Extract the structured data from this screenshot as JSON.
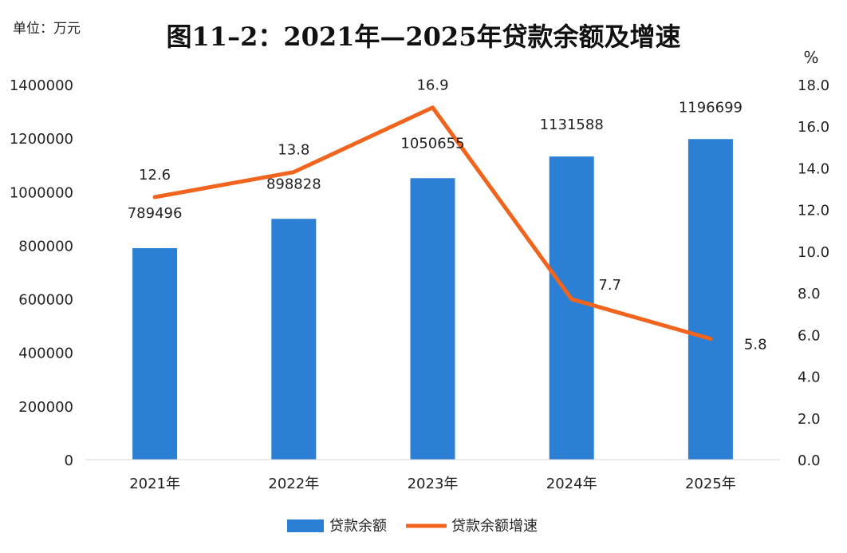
{
  "chart_data": {
    "type": "bar",
    "title": "图11–2：2021年—2025年贷款余额及增速",
    "unit_left": "单位：万元",
    "unit_right": "%",
    "categories": [
      "2021年",
      "2022年",
      "2023年",
      "2024年",
      "2025年"
    ],
    "left_axis": {
      "ylim": [
        0,
        1400000
      ],
      "ticks": [
        "0",
        "200000",
        "400000",
        "600000",
        "800000",
        "1000000",
        "1200000",
        "1400000"
      ]
    },
    "right_axis": {
      "ylim": [
        0,
        18
      ],
      "ticks": [
        "0.0",
        "2.0",
        "4.0",
        "6.0",
        "8.0",
        "10.0",
        "12.0",
        "14.0",
        "16.0",
        "18.0"
      ]
    },
    "series": [
      {
        "name": "贷款余额",
        "type": "bar",
        "axis": "left",
        "color": "#2b7fd4",
        "values": [
          789496,
          898828,
          1050655,
          1131588,
          1196699
        ],
        "labels": [
          "789496",
          "898828",
          "1050655",
          "1131588",
          "1196699"
        ]
      },
      {
        "name": "贷款余额增速",
        "type": "line",
        "axis": "right",
        "color": "#f0641e",
        "values": [
          12.6,
          13.8,
          16.9,
          7.7,
          5.8
        ],
        "labels": [
          "12.6",
          "13.8",
          "16.9",
          "7.7",
          "5.8"
        ]
      }
    ],
    "grid": false,
    "legend_position": "bottom-center"
  }
}
